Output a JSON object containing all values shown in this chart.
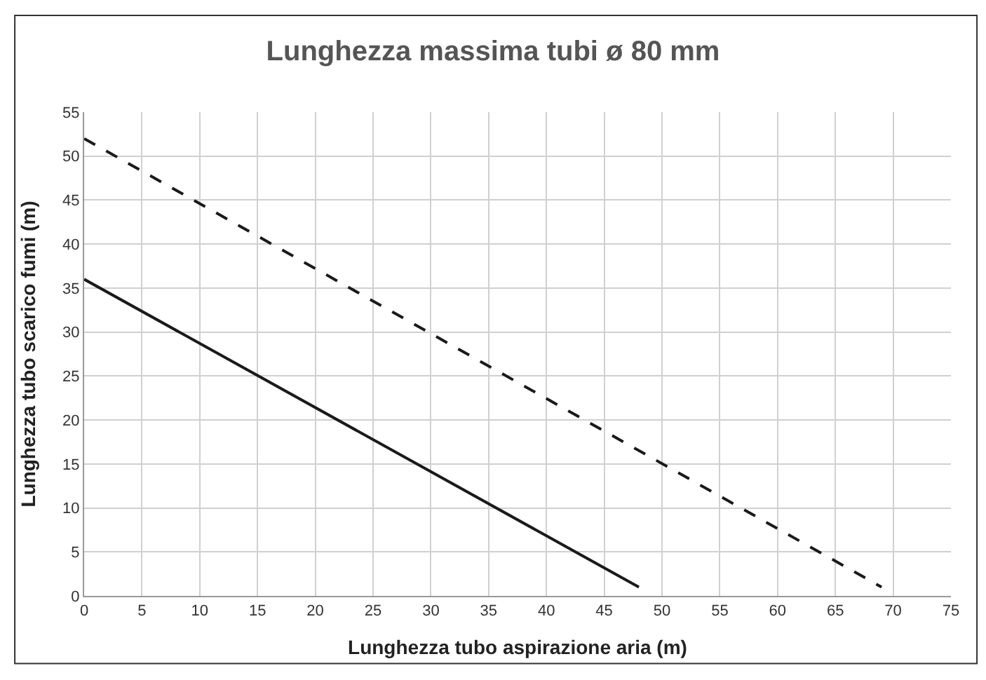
{
  "chart_data": {
    "type": "line",
    "title": "Lunghezza massima tubi ø 80 mm",
    "xlabel": "Lunghezza tubo aspirazione aria (m)",
    "ylabel": "Lunghezza tubo scarico fumi (m)",
    "series": [
      {
        "color": "#1a1a1a",
        "x": [
          0,
          69
        ],
        "values": [
          52,
          1
        ],
        "line_style": "dashed"
      },
      {
        "color": "#1a1a1a",
        "x": [
          0,
          48
        ],
        "values": [
          36,
          1
        ],
        "line_style": "solid"
      }
    ],
    "xlim": [
      0,
      75
    ],
    "xticks": [
      0,
      5,
      10,
      15,
      20,
      25,
      30,
      35,
      40,
      45,
      50,
      55,
      60,
      65,
      70,
      75
    ],
    "ylim": [
      0,
      55
    ],
    "yticks": [
      0,
      5,
      10,
      15,
      20,
      25,
      30,
      35,
      40,
      45,
      50,
      55
    ],
    "grid": true,
    "marker": "none"
  }
}
